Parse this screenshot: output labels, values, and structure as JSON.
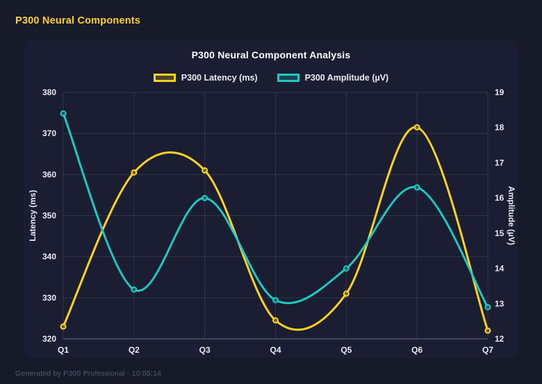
{
  "header": {
    "title": "P300 Neural Components"
  },
  "footer": {
    "text": "Generated by P300 Professional - 10:05:14"
  },
  "colors": {
    "background": "#161a29",
    "card": "#1b1e33",
    "grid": "rgba(255,255,255,0.10)",
    "tick": "#e9ebf2",
    "title": "#ffffff",
    "accent_yellow": "#ffd21f",
    "accent_teal": "#1ec9c0",
    "footer_text": "#555d72"
  },
  "chart_data": {
    "type": "line",
    "title": "P300 Neural Component Analysis",
    "categories": [
      "Q1",
      "Q2",
      "Q3",
      "Q4",
      "Q5",
      "Q6",
      "Q7"
    ],
    "series": [
      {
        "name": "P300 Latency (ms)",
        "axis": "left",
        "color": "#ffd21f",
        "values": [
          323,
          360.5,
          361,
          324.5,
          331,
          371.5,
          322
        ]
      },
      {
        "name": "P300 Amplitude (µV)",
        "axis": "right",
        "color": "#1ec9c0",
        "values": [
          18.4,
          13.4,
          16.0,
          13.1,
          14.0,
          16.3,
          12.9
        ]
      }
    ],
    "left_axis": {
      "label": "Latency (ms)",
      "min": 320,
      "max": 380,
      "ticks": [
        320,
        330,
        340,
        350,
        360,
        370,
        380
      ]
    },
    "right_axis": {
      "label": "Amplitude (µV)",
      "min": 12,
      "max": 19,
      "ticks": [
        12,
        13,
        14,
        15,
        16,
        17,
        18,
        19
      ]
    },
    "grid": true,
    "smooth": true,
    "legend_position": "top"
  }
}
